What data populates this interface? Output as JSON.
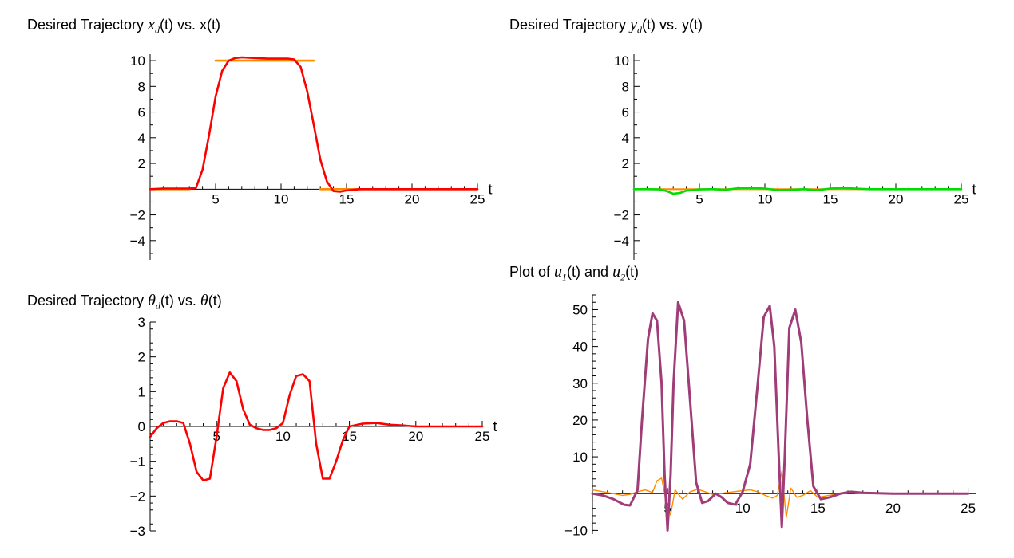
{
  "chart_data": [
    {
      "id": "x",
      "type": "line",
      "title": {
        "prefix": "Desired Trajectory ",
        "sym1": "x",
        "sub1": "d",
        "mid": "(t) vs. x(t)"
      },
      "axis_label": "t",
      "xlim": [
        0,
        25
      ],
      "ylim": [
        -5.5,
        10.5
      ],
      "xticks": [
        5,
        10,
        15,
        20,
        25
      ],
      "yticks": [
        10,
        8,
        6,
        4,
        2,
        -2,
        -4
      ],
      "series": [
        {
          "color": "#FF8C00",
          "width": 2.6,
          "x": [
            0,
            2,
            2.999,
            3.0,
            5,
            10,
            12.5,
            12.501,
            13,
            15,
            20,
            25
          ],
          "y": [
            0,
            0,
            0,
            null,
            10,
            10,
            10,
            null,
            0,
            0,
            0,
            0
          ]
        },
        {
          "color": "#FF0000",
          "width": 2.6,
          "x": [
            0,
            1,
            2,
            3,
            3.5,
            4,
            4.5,
            5,
            5.5,
            6,
            6.5,
            7,
            8,
            9,
            10,
            10.5,
            11,
            11.5,
            12,
            12.5,
            13,
            13.5,
            14,
            14.5,
            15,
            16,
            18,
            20,
            25
          ],
          "y": [
            0,
            0.05,
            0.05,
            0.05,
            0.1,
            1.5,
            4.2,
            7.2,
            9.2,
            10.0,
            10.2,
            10.25,
            10.2,
            10.15,
            10.15,
            10.15,
            10.1,
            9.5,
            7.6,
            5.0,
            2.3,
            0.6,
            -0.15,
            -0.2,
            -0.1,
            0,
            0,
            0,
            0
          ]
        }
      ]
    },
    {
      "id": "y",
      "type": "line",
      "title": {
        "prefix": "Desired Trajectory ",
        "sym1": "y",
        "sub1": "d",
        "mid": "(t) vs. y(t)"
      },
      "axis_label": "t",
      "xlim": [
        0,
        25
      ],
      "ylim": [
        -5.5,
        10.5
      ],
      "xticks": [
        5,
        10,
        15,
        20,
        25
      ],
      "yticks": [
        10,
        8,
        6,
        4,
        2,
        -2,
        -4
      ],
      "series": [
        {
          "color": "#FF8C00",
          "width": 2.2,
          "x": [
            0,
            25
          ],
          "y": [
            0,
            0
          ]
        },
        {
          "color": "#00DD00",
          "width": 2.6,
          "x": [
            0,
            1,
            2,
            2.5,
            3,
            3.5,
            4,
            5,
            6,
            7,
            8,
            9,
            10,
            11,
            12,
            13,
            14,
            15,
            16,
            17,
            18,
            20,
            25
          ],
          "y": [
            0,
            0,
            -0.02,
            -0.15,
            -0.35,
            -0.3,
            -0.12,
            -0.02,
            0.0,
            -0.05,
            0.08,
            0.1,
            0.05,
            -0.08,
            -0.05,
            0.0,
            -0.08,
            0.05,
            0.1,
            0.04,
            0,
            0,
            0
          ]
        }
      ]
    },
    {
      "id": "theta",
      "type": "line",
      "title": {
        "prefix": "Desired Trajectory ",
        "sym1": "θ",
        "sub1": "d",
        "mid": "(t) vs. ",
        "sym2": "θ",
        "tail": "(t)"
      },
      "axis_label": "t",
      "xlim": [
        0,
        25
      ],
      "ylim": [
        -3,
        3
      ],
      "xticks": [
        5,
        10,
        15,
        20,
        25
      ],
      "yticks": [
        3,
        2,
        1,
        0,
        -1,
        -2,
        -3
      ],
      "series": [
        {
          "color": "#FF0000",
          "width": 2.6,
          "x": [
            0,
            0.5,
            1,
            1.5,
            2,
            2.5,
            3,
            3.5,
            4,
            4.5,
            5,
            5.5,
            6,
            6.5,
            7,
            7.5,
            8,
            8.5,
            9,
            9.5,
            10,
            10.5,
            11,
            11.5,
            12,
            12.5,
            13,
            13.5,
            14,
            14.5,
            15,
            16,
            17,
            18,
            19,
            20,
            22,
            25
          ],
          "y": [
            -0.3,
            -0.05,
            0.1,
            0.15,
            0.15,
            0.1,
            -0.5,
            -1.3,
            -1.55,
            -1.5,
            -0.3,
            1.1,
            1.55,
            1.3,
            0.5,
            0.05,
            -0.05,
            -0.1,
            -0.1,
            -0.05,
            0.1,
            0.9,
            1.45,
            1.5,
            1.3,
            -0.5,
            -1.5,
            -1.5,
            -1.0,
            -0.4,
            0.0,
            0.08,
            0.1,
            0.05,
            0.03,
            0.0,
            0.0,
            0.0
          ]
        }
      ]
    },
    {
      "id": "u",
      "type": "line",
      "title": {
        "prefix": "Plot of ",
        "sym1": "u",
        "sub1": "1",
        "mid": "(t) and ",
        "sym2": "u",
        "sub2": "2",
        "tail": "(t)"
      },
      "axis_label": "",
      "xlim": [
        0,
        25.5
      ],
      "ylim": [
        -11,
        54
      ],
      "xticks": [
        5,
        10,
        15,
        20,
        25
      ],
      "yticks": [
        50,
        40,
        30,
        20,
        10,
        -10
      ],
      "series": [
        {
          "color": "#FF8C00",
          "width": 1.4,
          "x": [
            0,
            1,
            2,
            2.5,
            3,
            3.5,
            4,
            4.3,
            4.6,
            4.9,
            5.2,
            5.5,
            6,
            6.5,
            7,
            7.5,
            8,
            9,
            10,
            10.5,
            11,
            11.5,
            12,
            12.3,
            12.6,
            12.9,
            13.2,
            13.6,
            14,
            14.5,
            15,
            16,
            17,
            18,
            20,
            25
          ],
          "y": [
            1.0,
            0.3,
            -0.5,
            -0.2,
            0.5,
            1.0,
            0.3,
            3.5,
            4.2,
            -2.0,
            -5.8,
            1.0,
            -1.5,
            0.5,
            1.2,
            0.5,
            -0.2,
            0.3,
            0.8,
            1.0,
            0.5,
            -0.5,
            -1.2,
            -0.5,
            6.0,
            -6.5,
            1.5,
            -1.0,
            -0.5,
            0.8,
            -1.0,
            -0.3,
            0.3,
            0,
            0,
            0
          ]
        },
        {
          "color": "#A03C78",
          "width": 3.0,
          "x": [
            0,
            0.7,
            1.4,
            2.1,
            2.5,
            3.0,
            3.3,
            3.7,
            4.0,
            4.3,
            4.6,
            4.8,
            5.0,
            5.2,
            5.4,
            5.7,
            6.1,
            6.5,
            6.9,
            7.3,
            7.7,
            8.2,
            8.6,
            9.0,
            9.5,
            10.0,
            10.5,
            11.0,
            11.4,
            11.8,
            12.1,
            12.4,
            12.6,
            12.8,
            13.1,
            13.5,
            13.9,
            14.3,
            14.7,
            15.2,
            15.8,
            16.5,
            17.2,
            18,
            20,
            25
          ],
          "y": [
            0,
            -0.5,
            -1.5,
            -3.0,
            -3.2,
            1.0,
            20,
            42,
            49,
            47,
            30,
            5,
            -10,
            5,
            30,
            52,
            47,
            25,
            3,
            -2.5,
            -2.0,
            0.0,
            -1.0,
            -2.5,
            -3.0,
            0.5,
            8.0,
            30,
            48,
            51,
            40,
            10,
            -9,
            10,
            45,
            50,
            41,
            20,
            2,
            -1.5,
            -1.0,
            0.0,
            0.5,
            0.2,
            0,
            0
          ]
        }
      ]
    }
  ]
}
